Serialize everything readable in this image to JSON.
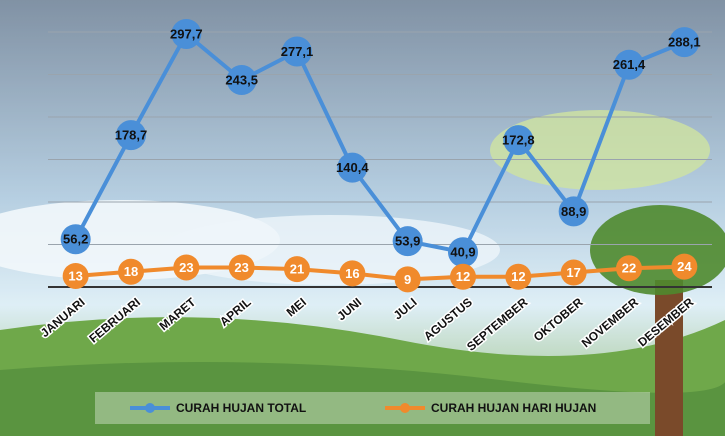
{
  "chart_data": {
    "type": "line",
    "categories": [
      "JANUARI",
      "FEBRUARI",
      "MARET",
      "APRIL",
      "MEI",
      "JUNI",
      "JULI",
      "AGUSTUS",
      "SEPTEMBER",
      "OKTOBER",
      "NOVEMBER",
      "DESEMBER"
    ],
    "series": [
      {
        "name": "CURAH HUJAN TOTAL",
        "color": "#4a8fd8",
        "values": [
          56.2,
          178.7,
          297.7,
          243.5,
          277.1,
          140.4,
          53.9,
          40.9,
          172.8,
          88.9,
          261.4,
          288.1
        ],
        "value_labels": [
          "56,2",
          "178,7",
          "297,7",
          "243,5",
          "277,1",
          "140,4",
          "53,9",
          "40,9",
          "172,8",
          "88,9",
          "261,4",
          "288,1"
        ]
      },
      {
        "name": "CURAH HUJAN HARI HUJAN",
        "color": "#f08a2c",
        "values": [
          13,
          18,
          23,
          23,
          21,
          16,
          9,
          12,
          12,
          17,
          22,
          24
        ]
      }
    ],
    "ylim": [
      0,
      320
    ],
    "yticks": [
      0,
      50,
      100,
      150,
      200,
      250,
      300
    ],
    "grid": true,
    "legend": "bottom"
  }
}
